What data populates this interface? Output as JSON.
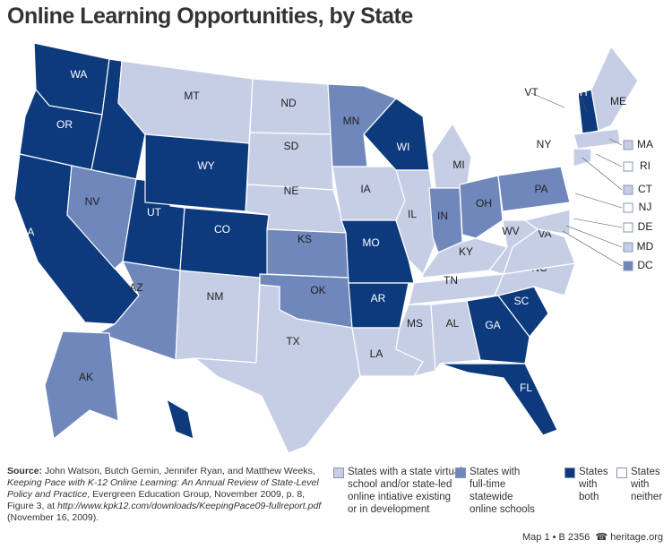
{
  "title": "Online Learning Opportunities, by State",
  "legend": [
    {
      "lines": [
        "States with a state virtual",
        "school and/or state-led",
        "online intiative existing",
        "or in development"
      ],
      "color": "#c6cee6"
    },
    {
      "lines": [
        "States with",
        "full-time",
        "statewide",
        "online schools"
      ],
      "color": "#6f87ba"
    },
    {
      "lines": [
        "States",
        "with",
        "both"
      ],
      "color": "#0c3a7d"
    },
    {
      "lines": [
        "States",
        "with",
        "neither"
      ],
      "color": "#ffffff"
    }
  ],
  "states": [
    {
      "abbr": "WA",
      "category": 2
    },
    {
      "abbr": "OR",
      "category": 2
    },
    {
      "abbr": "CA",
      "category": 2
    },
    {
      "abbr": "ID",
      "category": 2
    },
    {
      "abbr": "NV",
      "category": 1
    },
    {
      "abbr": "UT",
      "category": 2
    },
    {
      "abbr": "AZ",
      "category": 1
    },
    {
      "abbr": "MT",
      "category": 0
    },
    {
      "abbr": "WY",
      "category": 2
    },
    {
      "abbr": "CO",
      "category": 2
    },
    {
      "abbr": "NM",
      "category": 0
    },
    {
      "abbr": "ND",
      "category": 0
    },
    {
      "abbr": "SD",
      "category": 0
    },
    {
      "abbr": "NE",
      "category": 0
    },
    {
      "abbr": "KS",
      "category": 1
    },
    {
      "abbr": "OK",
      "category": 1
    },
    {
      "abbr": "TX",
      "category": 0
    },
    {
      "abbr": "MN",
      "category": 1
    },
    {
      "abbr": "IA",
      "category": 0
    },
    {
      "abbr": "MO",
      "category": 2
    },
    {
      "abbr": "AR",
      "category": 2
    },
    {
      "abbr": "LA",
      "category": 0
    },
    {
      "abbr": "WI",
      "category": 2
    },
    {
      "abbr": "IL",
      "category": 0
    },
    {
      "abbr": "MI",
      "category": 0
    },
    {
      "abbr": "IN",
      "category": 1
    },
    {
      "abbr": "OH",
      "category": 1
    },
    {
      "abbr": "KY",
      "category": 0
    },
    {
      "abbr": "TN",
      "category": 0
    },
    {
      "abbr": "MS",
      "category": 0
    },
    {
      "abbr": "AL",
      "category": 0
    },
    {
      "abbr": "GA",
      "category": 2
    },
    {
      "abbr": "FL",
      "category": 2
    },
    {
      "abbr": "SC",
      "category": 2
    },
    {
      "abbr": "NC",
      "category": 0
    },
    {
      "abbr": "VA",
      "category": 0
    },
    {
      "abbr": "WV",
      "category": 0
    },
    {
      "abbr": "PA",
      "category": 1
    },
    {
      "abbr": "NY",
      "category": 3
    },
    {
      "abbr": "VT",
      "category": 3
    },
    {
      "abbr": "NH",
      "category": 2
    },
    {
      "abbr": "ME",
      "category": 0
    },
    {
      "abbr": "MA",
      "category": 0
    },
    {
      "abbr": "CT",
      "category": 0
    },
    {
      "abbr": "RI",
      "category": 3
    },
    {
      "abbr": "NJ",
      "category": 3
    },
    {
      "abbr": "DE",
      "category": 3
    },
    {
      "abbr": "MD",
      "category": 0
    },
    {
      "abbr": "DC",
      "category": 1
    },
    {
      "abbr": "AK",
      "category": 1
    },
    {
      "abbr": "HI",
      "category": 2
    }
  ],
  "source": [
    {
      "text": "Source:",
      "bold": true
    },
    {
      "text": " John Watson, Butch Gemin, Jennifer Ryan, and Matthew Weeks, "
    },
    {
      "text": "Keeping Pace with K-12 Online Learning: An Annual Review of State-Level Policy and Practice",
      "italic": true
    },
    {
      "text": ", Evergreen Education Group, November 2009, p. 8, Figure 3, at "
    },
    {
      "text": "http://www.kpk12.com/downloads/KeepingPace09-fullreport.pdf",
      "italic": true
    },
    {
      "text": " (November 16, 2009)."
    }
  ],
  "footer": {
    "map": "Map 1 • B 2356",
    "site": "heritage.org"
  }
}
